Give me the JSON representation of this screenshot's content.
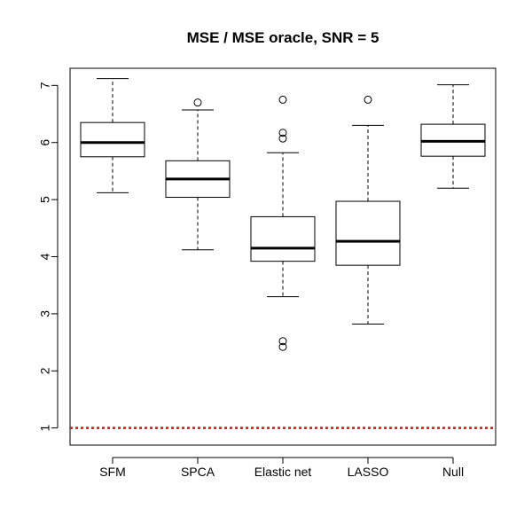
{
  "chart_data": {
    "type": "boxplot",
    "title": "MSE / MSE oracle, SNR = 5",
    "xlabel": "",
    "ylabel": "",
    "ylim": [
      0.7,
      7.3
    ],
    "yticks": [
      1,
      2,
      3,
      4,
      5,
      6,
      7
    ],
    "categories": [
      "SFM",
      "SPCA",
      "Elastic net",
      "LASSO",
      "Null"
    ],
    "boxes": [
      {
        "whisker_low": 5.12,
        "q1": 5.75,
        "median": 6.0,
        "q3": 6.35,
        "whisker_high": 7.12,
        "outliers": []
      },
      {
        "whisker_low": 4.12,
        "q1": 5.04,
        "median": 5.36,
        "q3": 5.68,
        "whisker_high": 6.57,
        "outliers": [
          6.7
        ]
      },
      {
        "whisker_low": 3.3,
        "q1": 3.92,
        "median": 4.15,
        "q3": 4.7,
        "whisker_high": 5.82,
        "outliers": [
          6.75,
          6.17,
          6.07,
          2.52,
          2.42
        ]
      },
      {
        "whisker_low": 2.82,
        "q1": 3.85,
        "median": 4.27,
        "q3": 4.97,
        "whisker_high": 6.3,
        "outliers": [
          6.75
        ]
      },
      {
        "whisker_low": 5.2,
        "q1": 5.76,
        "median": 6.02,
        "q3": 6.32,
        "whisker_high": 7.01,
        "outliers": []
      }
    ],
    "reference_line": {
      "value": 1,
      "style": "dotted",
      "color": "#ff0000"
    },
    "grid": false,
    "legend": "none"
  }
}
